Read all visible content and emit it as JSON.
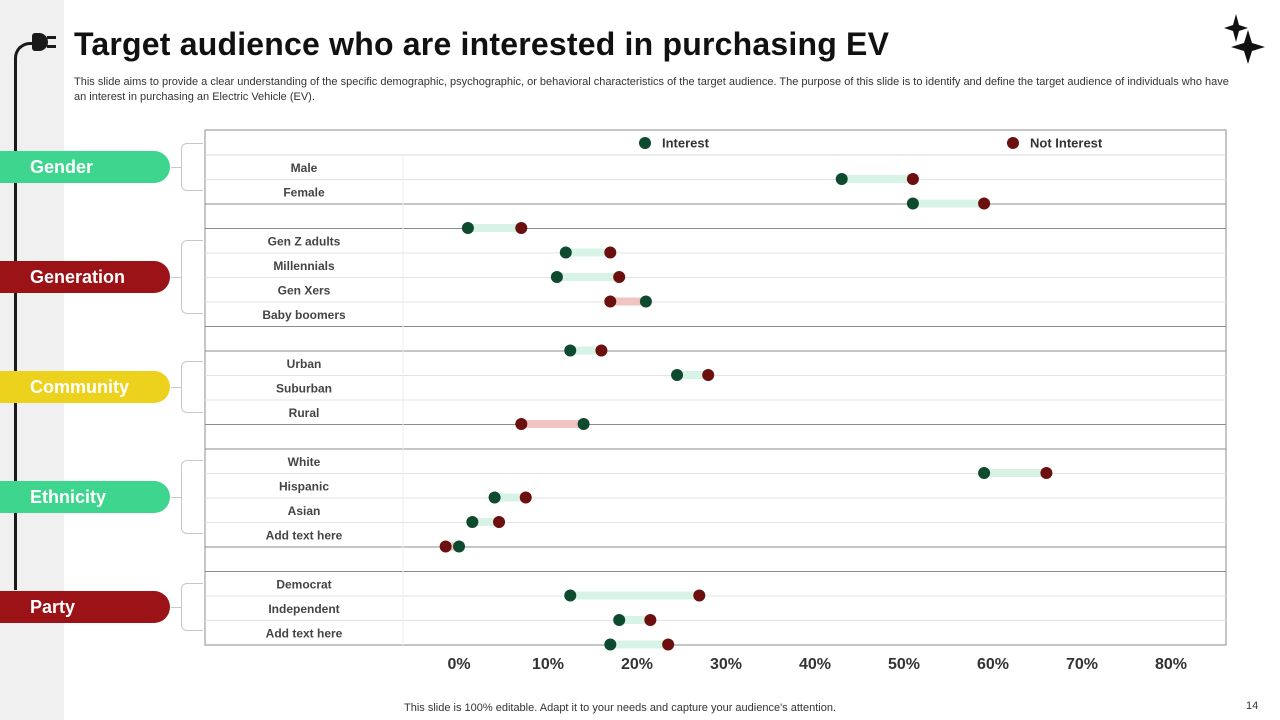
{
  "header": {
    "title": "Target audience who are interested in purchasing EV",
    "subtitle": "This slide aims to provide a clear understanding of the specific demographic, psychographic, or behavioral characteristics of the target audience. The purpose of this slide is to identify and define the target audience of individuals who have an interest in purchasing an Electric Vehicle (EV)."
  },
  "footer": {
    "note": "This slide is 100% editable. Adapt it to your needs and capture your audience's attention.",
    "page": "14"
  },
  "colors": {
    "interest": "#0e4a2e",
    "not_interest": "#6b0f0f",
    "interest_bar": "#d6f3e6",
    "not_interest_bar": "#f1c4c4",
    "green_pill": "#3ed58e",
    "red_pill": "#9b1217",
    "yellow_pill": "#ecd21c"
  },
  "groups": [
    {
      "label": "Gender",
      "color": "#3ed58e"
    },
    {
      "label": "Generation",
      "color": "#9b1217"
    },
    {
      "label": "Community",
      "color": "#ecd21c"
    },
    {
      "label": "Ethnicity",
      "color": "#3ed58e"
    },
    {
      "label": "Party",
      "color": "#9b1217"
    }
  ],
  "chart_data": {
    "type": "dumbbell",
    "legend": {
      "interest": "Interest",
      "not_interest": "Not Interest",
      "placement": "top"
    },
    "x_ticks": [
      "0%",
      "10%",
      "20%",
      "30%",
      "40%",
      "50%",
      "60%",
      "70%",
      "80%"
    ],
    "xlim": [
      0,
      80
    ],
    "rows": [
      {
        "label": "Male",
        "group": "Gender",
        "interest": 43,
        "not_interest": 51
      },
      {
        "label": "Female",
        "group": "Gender",
        "interest": 51,
        "not_interest": 59
      },
      {
        "label": "",
        "separator": true,
        "interest": 1,
        "not_interest": 7
      },
      {
        "label": "Gen Z adults",
        "group": "Generation",
        "interest": 12,
        "not_interest": 17
      },
      {
        "label": "Millennials",
        "group": "Generation",
        "interest": 11,
        "not_interest": 18
      },
      {
        "label": "Gen Xers",
        "group": "Generation",
        "interest": 21,
        "not_interest": 17
      },
      {
        "label": "Baby boomers",
        "group": "Generation"
      },
      {
        "label": "",
        "separator": true,
        "interest": 12.5,
        "not_interest": 16
      },
      {
        "label": "Urban",
        "group": "Community",
        "interest": 24.5,
        "not_interest": 28
      },
      {
        "label": "Suburban",
        "group": "Community"
      },
      {
        "label": "Rural",
        "group": "Community",
        "interest": 14,
        "not_interest": 7
      },
      {
        "label": "",
        "separator": true
      },
      {
        "label": "White",
        "group": "Ethnicity",
        "interest": 59,
        "not_interest": 66
      },
      {
        "label": "Hispanic",
        "group": "Ethnicity",
        "interest": 4,
        "not_interest": 7.5
      },
      {
        "label": "Asian",
        "group": "Ethnicity",
        "interest": 1.5,
        "not_interest": 4.5
      },
      {
        "label": "Add text here",
        "group": "Ethnicity",
        "interest": 0,
        "not_interest": -1.5
      },
      {
        "label": "",
        "separator": true
      },
      {
        "label": "Democrat",
        "group": "Party",
        "interest": 12.5,
        "not_interest": 27
      },
      {
        "label": "Independent",
        "group": "Party",
        "interest": 18,
        "not_interest": 21.5
      },
      {
        "label": "Add text here",
        "group": "Party",
        "interest": 17,
        "not_interest": 23.5
      }
    ]
  }
}
